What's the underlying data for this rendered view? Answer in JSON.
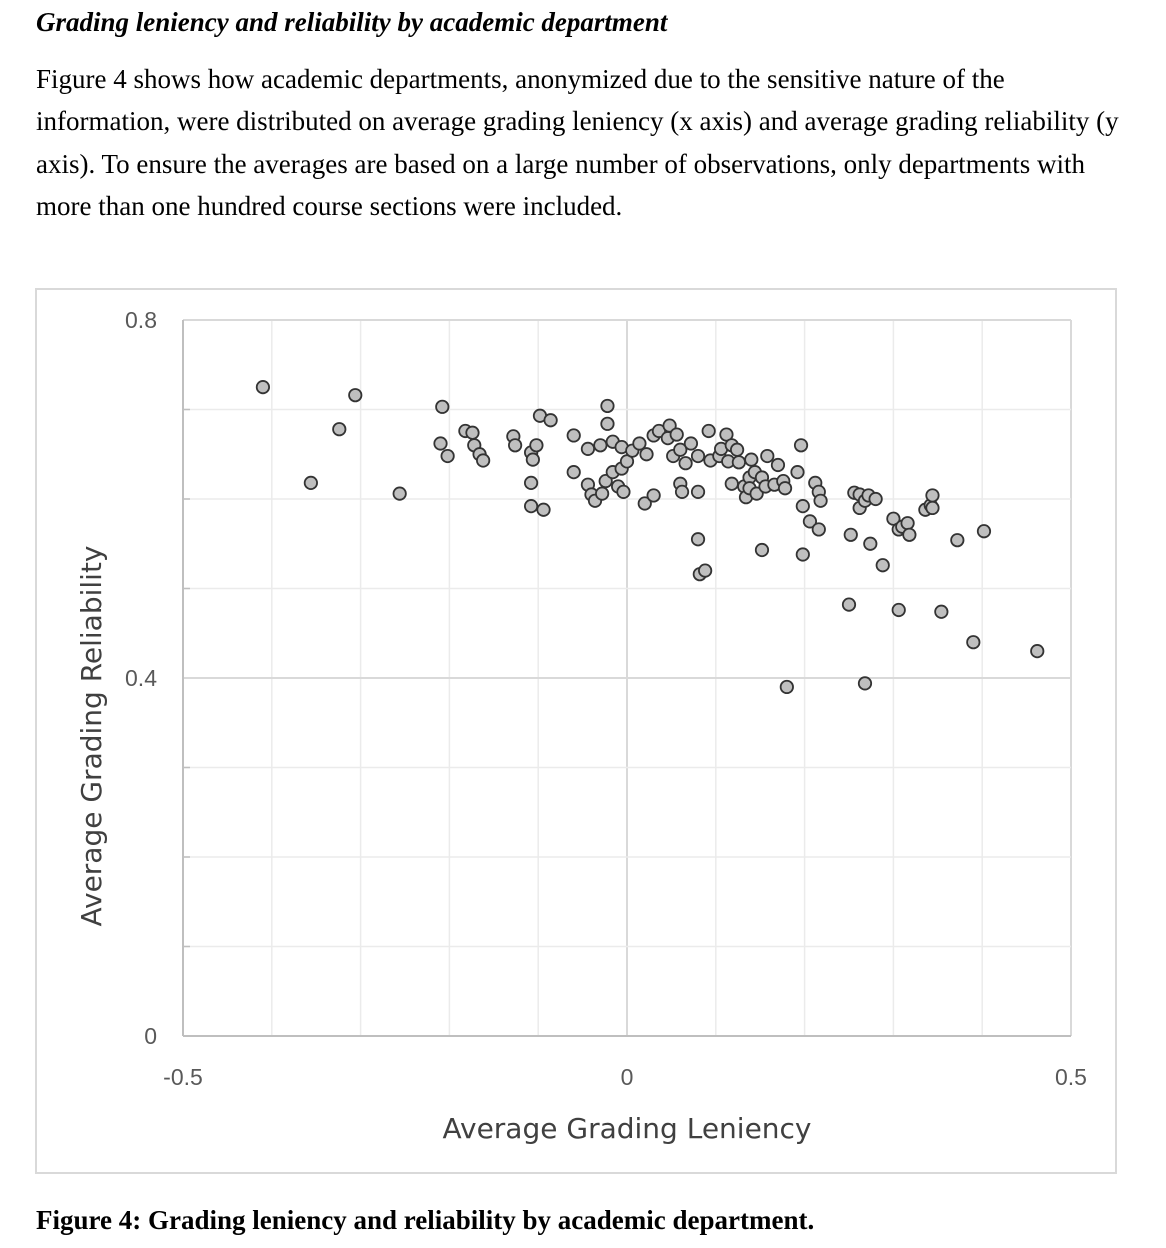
{
  "heading": "Grading leniency and reliability by academic department",
  "paragraph": "Figure 4 shows how academic departments, anonymized due to the sensitive nature of the information, were distributed on average grading leniency (x axis) and average grading reliability (y axis). To ensure the averages are based on a large number of observations, only departments with more than one hundred course sections were included.",
  "caption": "Figure 4: Grading leniency and reliability by academic department.",
  "chart_data": {
    "type": "scatter",
    "title": "",
    "xlabel": "Average Grading Leniency",
    "ylabel": "Average Grading Reliability",
    "xlim": [
      -0.5,
      0.5
    ],
    "ylim": [
      0,
      0.8
    ],
    "x_major_ticks": [
      -0.5,
      0,
      0.5
    ],
    "x_tick_labels": [
      "-0.5",
      "0",
      "0.5"
    ],
    "y_major_ticks": [
      0,
      0.4,
      0.8
    ],
    "y_tick_labels": [
      "0",
      "0.4",
      "0.8"
    ],
    "x_minor_step": 0.1,
    "y_minor_step": 0.1,
    "grid": true,
    "legend": "none",
    "colors": {
      "marker_fill": "#bfbfbf",
      "marker_edge": "#333333",
      "grid_major": "#d9d9d9",
      "grid_minor": "#ebebeb",
      "axis_line": "#bfbfbf"
    },
    "points": [
      {
        "x": -0.41,
        "y": 0.725
      },
      {
        "x": -0.356,
        "y": 0.618
      },
      {
        "x": -0.324,
        "y": 0.678
      },
      {
        "x": -0.306,
        "y": 0.716
      },
      {
        "x": -0.256,
        "y": 0.606
      },
      {
        "x": -0.208,
        "y": 0.703
      },
      {
        "x": -0.21,
        "y": 0.662
      },
      {
        "x": -0.202,
        "y": 0.648
      },
      {
        "x": -0.182,
        "y": 0.676
      },
      {
        "x": -0.174,
        "y": 0.674
      },
      {
        "x": -0.172,
        "y": 0.66
      },
      {
        "x": -0.166,
        "y": 0.65
      },
      {
        "x": -0.162,
        "y": 0.643
      },
      {
        "x": -0.128,
        "y": 0.67
      },
      {
        "x": -0.126,
        "y": 0.66
      },
      {
        "x": -0.108,
        "y": 0.652
      },
      {
        "x": -0.106,
        "y": 0.644
      },
      {
        "x": -0.108,
        "y": 0.618
      },
      {
        "x": -0.108,
        "y": 0.592
      },
      {
        "x": -0.102,
        "y": 0.66
      },
      {
        "x": -0.098,
        "y": 0.693
      },
      {
        "x": -0.086,
        "y": 0.688
      },
      {
        "x": -0.094,
        "y": 0.588
      },
      {
        "x": -0.06,
        "y": 0.671
      },
      {
        "x": -0.06,
        "y": 0.63
      },
      {
        "x": -0.044,
        "y": 0.656
      },
      {
        "x": -0.044,
        "y": 0.616
      },
      {
        "x": -0.04,
        "y": 0.605
      },
      {
        "x": -0.036,
        "y": 0.598
      },
      {
        "x": -0.03,
        "y": 0.66
      },
      {
        "x": -0.028,
        "y": 0.606
      },
      {
        "x": -0.024,
        "y": 0.62
      },
      {
        "x": -0.022,
        "y": 0.704
      },
      {
        "x": -0.022,
        "y": 0.684
      },
      {
        "x": -0.016,
        "y": 0.664
      },
      {
        "x": -0.016,
        "y": 0.63
      },
      {
        "x": -0.01,
        "y": 0.614
      },
      {
        "x": -0.006,
        "y": 0.658
      },
      {
        "x": -0.006,
        "y": 0.634
      },
      {
        "x": -0.004,
        "y": 0.608
      },
      {
        "x": 0.0,
        "y": 0.642
      },
      {
        "x": 0.006,
        "y": 0.654
      },
      {
        "x": 0.014,
        "y": 0.662
      },
      {
        "x": 0.022,
        "y": 0.65
      },
      {
        "x": 0.02,
        "y": 0.595
      },
      {
        "x": 0.03,
        "y": 0.604
      },
      {
        "x": 0.03,
        "y": 0.671
      },
      {
        "x": 0.036,
        "y": 0.676
      },
      {
        "x": 0.046,
        "y": 0.668
      },
      {
        "x": 0.048,
        "y": 0.682
      },
      {
        "x": 0.052,
        "y": 0.648
      },
      {
        "x": 0.056,
        "y": 0.672
      },
      {
        "x": 0.06,
        "y": 0.655
      },
      {
        "x": 0.06,
        "y": 0.617
      },
      {
        "x": 0.062,
        "y": 0.608
      },
      {
        "x": 0.066,
        "y": 0.64
      },
      {
        "x": 0.072,
        "y": 0.662
      },
      {
        "x": 0.08,
        "y": 0.648
      },
      {
        "x": 0.08,
        "y": 0.608
      },
      {
        "x": 0.08,
        "y": 0.555
      },
      {
        "x": 0.082,
        "y": 0.516
      },
      {
        "x": 0.088,
        "y": 0.52
      },
      {
        "x": 0.092,
        "y": 0.676
      },
      {
        "x": 0.094,
        "y": 0.643
      },
      {
        "x": 0.104,
        "y": 0.648
      },
      {
        "x": 0.106,
        "y": 0.656
      },
      {
        "x": 0.114,
        "y": 0.642
      },
      {
        "x": 0.118,
        "y": 0.617
      },
      {
        "x": 0.112,
        "y": 0.672
      },
      {
        "x": 0.118,
        "y": 0.66
      },
      {
        "x": 0.124,
        "y": 0.655
      },
      {
        "x": 0.126,
        "y": 0.641
      },
      {
        "x": 0.132,
        "y": 0.614
      },
      {
        "x": 0.134,
        "y": 0.602
      },
      {
        "x": 0.138,
        "y": 0.624
      },
      {
        "x": 0.138,
        "y": 0.612
      },
      {
        "x": 0.14,
        "y": 0.644
      },
      {
        "x": 0.144,
        "y": 0.63
      },
      {
        "x": 0.146,
        "y": 0.606
      },
      {
        "x": 0.152,
        "y": 0.624
      },
      {
        "x": 0.156,
        "y": 0.614
      },
      {
        "x": 0.158,
        "y": 0.648
      },
      {
        "x": 0.166,
        "y": 0.616
      },
      {
        "x": 0.17,
        "y": 0.638
      },
      {
        "x": 0.152,
        "y": 0.543
      },
      {
        "x": 0.176,
        "y": 0.62
      },
      {
        "x": 0.178,
        "y": 0.612
      },
      {
        "x": 0.18,
        "y": 0.39
      },
      {
        "x": 0.192,
        "y": 0.63
      },
      {
        "x": 0.196,
        "y": 0.66
      },
      {
        "x": 0.198,
        "y": 0.592
      },
      {
        "x": 0.198,
        "y": 0.538
      },
      {
        "x": 0.206,
        "y": 0.575
      },
      {
        "x": 0.212,
        "y": 0.618
      },
      {
        "x": 0.216,
        "y": 0.608
      },
      {
        "x": 0.218,
        "y": 0.598
      },
      {
        "x": 0.216,
        "y": 0.566
      },
      {
        "x": 0.25,
        "y": 0.482
      },
      {
        "x": 0.252,
        "y": 0.56
      },
      {
        "x": 0.256,
        "y": 0.607
      },
      {
        "x": 0.262,
        "y": 0.605
      },
      {
        "x": 0.262,
        "y": 0.59
      },
      {
        "x": 0.268,
        "y": 0.394
      },
      {
        "x": 0.268,
        "y": 0.598
      },
      {
        "x": 0.272,
        "y": 0.604
      },
      {
        "x": 0.274,
        "y": 0.55
      },
      {
        "x": 0.28,
        "y": 0.6
      },
      {
        "x": 0.288,
        "y": 0.526
      },
      {
        "x": 0.3,
        "y": 0.578
      },
      {
        "x": 0.306,
        "y": 0.476
      },
      {
        "x": 0.306,
        "y": 0.566
      },
      {
        "x": 0.31,
        "y": 0.569
      },
      {
        "x": 0.316,
        "y": 0.573
      },
      {
        "x": 0.318,
        "y": 0.56
      },
      {
        "x": 0.336,
        "y": 0.588
      },
      {
        "x": 0.342,
        "y": 0.593
      },
      {
        "x": 0.344,
        "y": 0.604
      },
      {
        "x": 0.344,
        "y": 0.59
      },
      {
        "x": 0.354,
        "y": 0.474
      },
      {
        "x": 0.372,
        "y": 0.554
      },
      {
        "x": 0.39,
        "y": 0.44
      },
      {
        "x": 0.402,
        "y": 0.564
      },
      {
        "x": 0.462,
        "y": 0.43
      }
    ]
  }
}
